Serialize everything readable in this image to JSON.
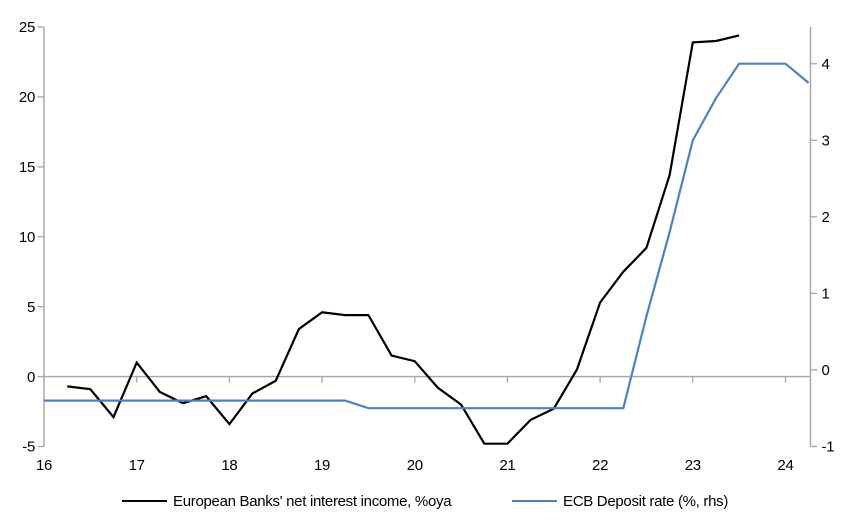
{
  "chart_data": {
    "type": "line",
    "title": "",
    "legend_position": "bottom",
    "grid": "zero-line-only",
    "x_axis": {
      "ticks": [
        16,
        17,
        18,
        19,
        20,
        21,
        22,
        23,
        24
      ],
      "range": [
        16,
        24.27
      ]
    },
    "left_axis": {
      "ticks": [
        25,
        20,
        15,
        10,
        5,
        0,
        -5
      ],
      "range": [
        -5,
        25
      ]
    },
    "right_axis": {
      "ticks": [
        4,
        3,
        2,
        1,
        0,
        -1
      ],
      "range": [
        -1,
        4.48
      ]
    },
    "series": [
      {
        "name": "European Banks' net interest income, %oya",
        "axis": "left",
        "color": "#000000",
        "x": [
          16.25,
          16.5,
          16.75,
          17,
          17.25,
          17.5,
          17.75,
          18,
          18.25,
          18.5,
          18.75,
          19,
          19.25,
          19.5,
          19.75,
          20,
          20.25,
          20.5,
          20.75,
          21,
          21.25,
          21.5,
          21.75,
          22,
          22.25,
          22.5,
          22.75,
          23,
          23.25,
          23.5
        ],
        "values": [
          -0.7,
          -0.9,
          -2.9,
          1.0,
          -1.1,
          -1.9,
          -1.4,
          -3.4,
          -1.2,
          -0.3,
          3.4,
          4.6,
          4.4,
          4.4,
          1.5,
          1.1,
          -0.8,
          -2.0,
          -4.8,
          -4.8,
          -3.1,
          -2.3,
          0.5,
          5.3,
          7.5,
          9.2,
          14.4,
          23.9,
          24.0,
          24.4
        ]
      },
      {
        "name": "ECB Deposit rate (%, rhs)",
        "axis": "right",
        "color": "#4F81BD",
        "x": [
          16,
          16.25,
          16.5,
          16.75,
          17,
          17.25,
          17.5,
          17.75,
          18,
          18.25,
          18.5,
          18.75,
          19,
          19.25,
          19.5,
          19.75,
          20,
          20.25,
          20.5,
          20.75,
          21,
          21.25,
          21.5,
          21.75,
          22,
          22.25,
          22.5,
          22.75,
          23,
          23.25,
          23.5,
          23.75,
          24,
          24.25
        ],
        "values": [
          -0.4,
          -0.4,
          -0.4,
          -0.4,
          -0.4,
          -0.4,
          -0.4,
          -0.4,
          -0.4,
          -0.4,
          -0.4,
          -0.4,
          -0.4,
          -0.4,
          -0.5,
          -0.5,
          -0.5,
          -0.5,
          -0.5,
          -0.5,
          -0.5,
          -0.5,
          -0.5,
          -0.5,
          -0.5,
          -0.5,
          0.7,
          1.8,
          3.0,
          3.55,
          4.0,
          4.0,
          4.0,
          3.75
        ]
      }
    ],
    "colors": {
      "axis": "#A6A6A6",
      "text": "#000000",
      "background": "#FFFFFF"
    }
  },
  "legend": {
    "items": [
      {
        "label": "European Banks' net interest income, %oya"
      },
      {
        "label": "ECB Deposit rate (%, rhs)"
      }
    ]
  }
}
